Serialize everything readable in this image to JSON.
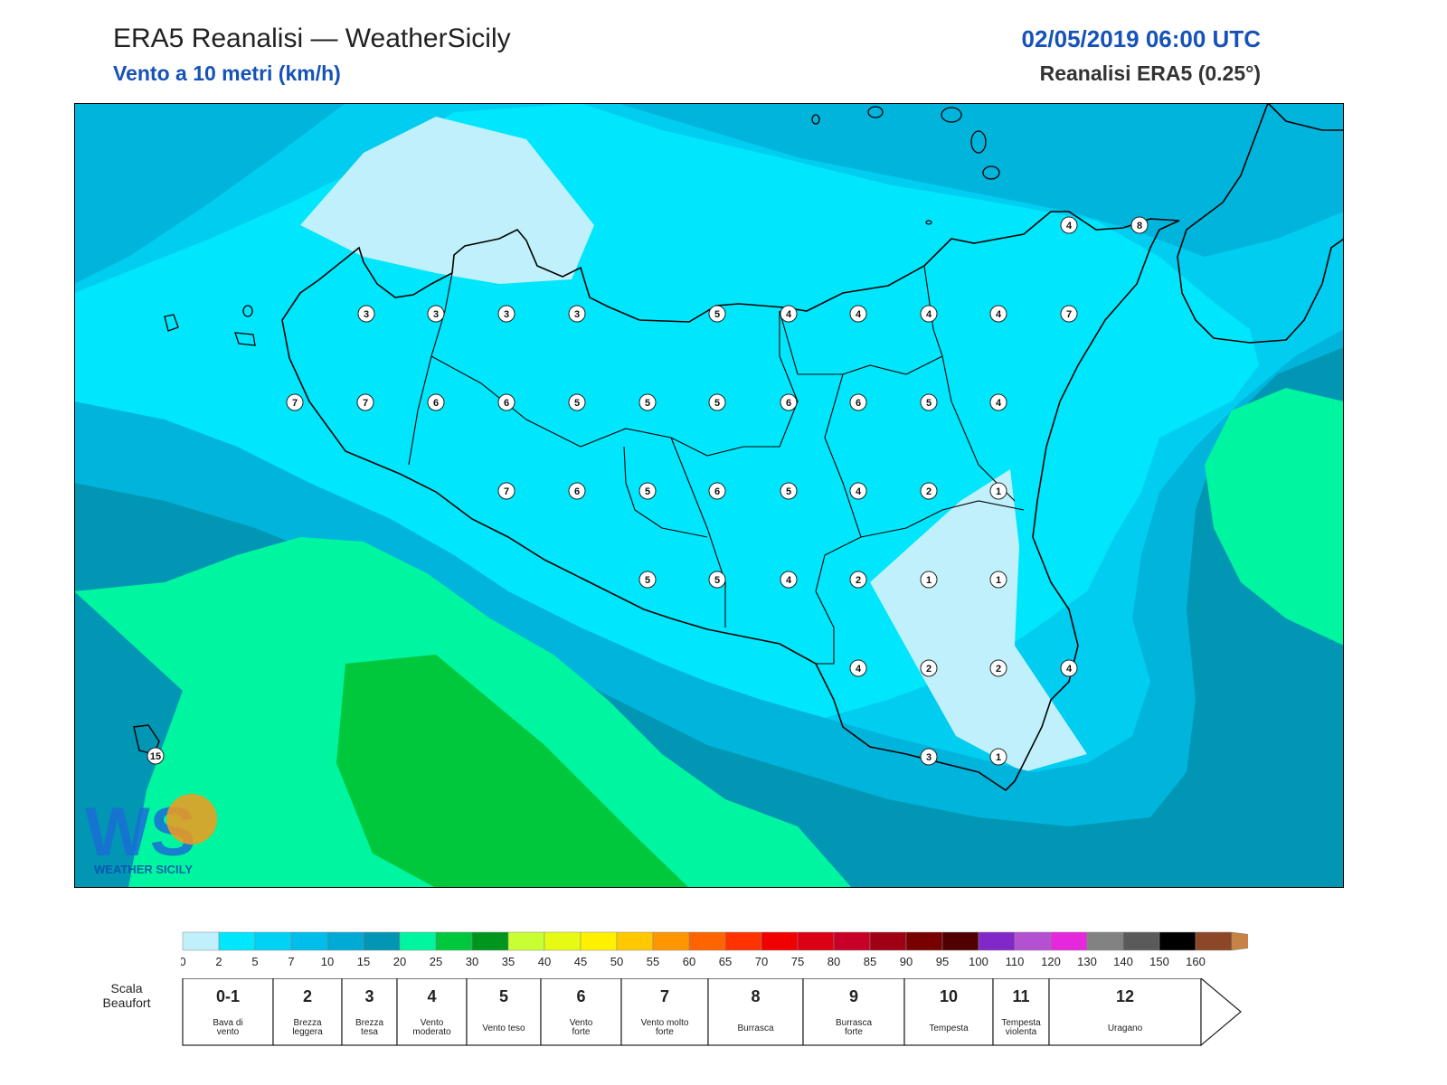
{
  "header": {
    "title": "ERA5 Reanalisi — WeatherSicily",
    "subtitle": "Vento a 10 metri (km/h)",
    "datetime": "02/05/2019 06:00 UTC",
    "model": "Reanalisi ERA5 (0.25°)"
  },
  "logo": {
    "monogram": "WS",
    "text": "WEATHER SICILY"
  },
  "map": {
    "region": "Sicilia",
    "station_values": [
      3,
      3,
      3,
      3,
      5,
      4,
      4,
      4,
      4,
      7,
      7,
      7,
      6,
      6,
      5,
      5,
      5,
      6,
      6,
      5,
      4,
      7,
      6,
      5,
      6,
      5,
      4,
      2,
      1,
      5,
      5,
      4,
      2,
      1,
      1,
      4,
      2,
      2,
      4,
      3,
      1,
      4,
      8,
      15
    ],
    "fill_colors": {
      "lightest": "#c0f0fc",
      "light": "#00e6fc",
      "mid": "#00cdf0",
      "dark": "#00b4dc",
      "darkest": "#0096b4",
      "sea_green": "#00f5a0",
      "green": "#00c83c"
    }
  },
  "colorbar": {
    "ticks": [
      "0",
      "2",
      "5",
      "7",
      "10",
      "15",
      "20",
      "25",
      "30",
      "35",
      "40",
      "45",
      "50",
      "55",
      "60",
      "65",
      "70",
      "75",
      "80",
      "85",
      "90",
      "95",
      "100",
      "110",
      "120",
      "130",
      "140",
      "150",
      "160"
    ],
    "colors": [
      "#c0f0fc",
      "#00e6fc",
      "#00d2f5",
      "#00beeb",
      "#00aad7",
      "#0096b4",
      "#00f5a0",
      "#00c83c",
      "#00961e",
      "#c8ff32",
      "#e6fa14",
      "#fff000",
      "#ffc800",
      "#ff9600",
      "#ff6400",
      "#ff3200",
      "#f00000",
      "#dc0014",
      "#c80028",
      "#a00014",
      "#780000",
      "#500000",
      "#8228c8",
      "#b450d2",
      "#e628dc",
      "#828282",
      "#5a5a5a",
      "#000000",
      "#8c4628",
      "#c88246"
    ]
  },
  "beaufort": {
    "title_line1": "Scala",
    "title_line2": "Beaufort",
    "classes": [
      {
        "num": "0-1",
        "desc": [
          "Bava di",
          "vento"
        ]
      },
      {
        "num": "2",
        "desc": [
          "Brezza",
          "leggera"
        ]
      },
      {
        "num": "3",
        "desc": [
          "Brezza",
          "tesa"
        ]
      },
      {
        "num": "4",
        "desc": [
          "Vento",
          "moderato"
        ]
      },
      {
        "num": "5",
        "desc": [
          "Vento teso"
        ]
      },
      {
        "num": "6",
        "desc": [
          "Vento",
          "forte"
        ]
      },
      {
        "num": "7",
        "desc": [
          "Vento molto",
          "forte"
        ]
      },
      {
        "num": "8",
        "desc": [
          "Burrasca"
        ]
      },
      {
        "num": "9",
        "desc": [
          "Burrasca",
          "forte"
        ]
      },
      {
        "num": "10",
        "desc": [
          "Tempesta"
        ]
      },
      {
        "num": "11",
        "desc": [
          "Tempesta",
          "violenta"
        ]
      },
      {
        "num": "12",
        "desc": [
          "Uragano"
        ]
      }
    ]
  }
}
